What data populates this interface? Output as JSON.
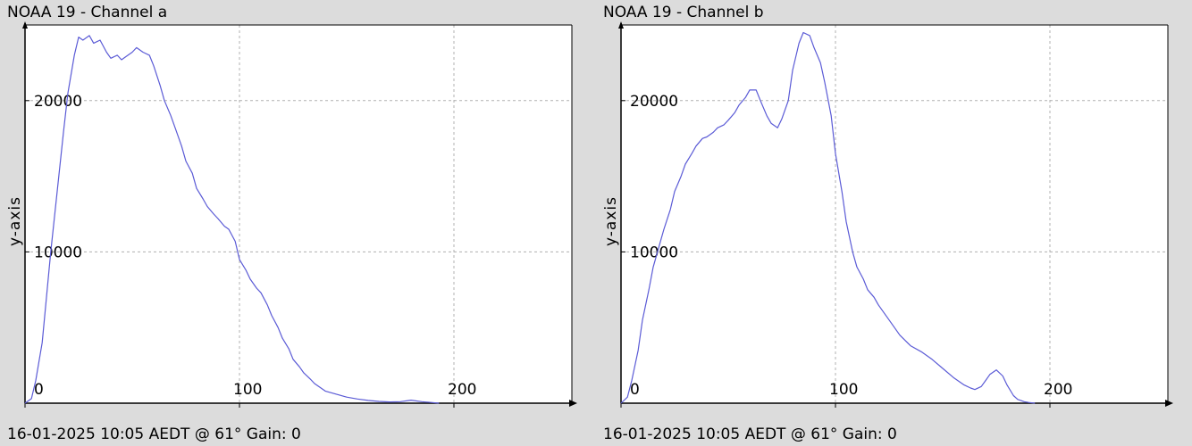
{
  "chart_data": [
    {
      "type": "line",
      "title": "NOAA 19 - Channel a",
      "footer": "16-01-2025 10:05 AEDT @ 61° Gain: 0",
      "xlabel": "",
      "ylabel": "y-axis",
      "xlim": [
        0,
        255
      ],
      "ylim": [
        0,
        25000
      ],
      "x_ticks": [
        0,
        100,
        200
      ],
      "x_tick_labels": [
        "0",
        "100",
        "200"
      ],
      "y_ticks": [
        10000,
        20000
      ],
      "y_tick_labels": [
        "10000",
        "20000"
      ],
      "grid": true,
      "color": "#5b5bd6",
      "series": [
        {
          "x": [
            0,
            3,
            5,
            8,
            10,
            12,
            15,
            18,
            20,
            23,
            25,
            27,
            30,
            32,
            35,
            38,
            40,
            43,
            45,
            48,
            50,
            52,
            55,
            58,
            60,
            63,
            65,
            68,
            70,
            73,
            75,
            78,
            80,
            83,
            85,
            88,
            90,
            93,
            95,
            98,
            100,
            103,
            105,
            108,
            110,
            113,
            115,
            118,
            120,
            123,
            125,
            128,
            130,
            133,
            135,
            138,
            140,
            145,
            150,
            155,
            160,
            165,
            170,
            175,
            180,
            185,
            190,
            193
          ],
          "values": [
            0,
            300,
            1500,
            4000,
            7000,
            10000,
            14000,
            18000,
            20500,
            23000,
            24200,
            24000,
            24300,
            23800,
            24000,
            23200,
            22800,
            23000,
            22700,
            23000,
            23200,
            23500,
            23200,
            23000,
            22300,
            21000,
            20000,
            19000,
            18200,
            17000,
            16000,
            15200,
            14200,
            13500,
            13000,
            12500,
            12200,
            11700,
            11500,
            10700,
            9500,
            8800,
            8200,
            7600,
            7300,
            6500,
            5800,
            5000,
            4300,
            3600,
            2900,
            2400,
            2000,
            1600,
            1300,
            1000,
            800,
            600,
            400,
            280,
            180,
            120,
            80,
            100,
            200,
            100,
            40,
            0
          ]
        }
      ]
    },
    {
      "type": "line",
      "title": "NOAA 19 - Channel b",
      "footer": "16-01-2025 10:05 AEDT @ 61° Gain: 0",
      "xlabel": "",
      "ylabel": "y-axis",
      "xlim": [
        0,
        255
      ],
      "ylim": [
        0,
        25000
      ],
      "x_ticks": [
        0,
        100,
        200
      ],
      "x_tick_labels": [
        "0",
        "100",
        "200"
      ],
      "y_ticks": [
        10000,
        20000
      ],
      "y_tick_labels": [
        "10000",
        "20000"
      ],
      "grid": true,
      "color": "#5b5bd6",
      "series": [
        {
          "x": [
            0,
            3,
            5,
            8,
            10,
            13,
            15,
            18,
            20,
            23,
            25,
            28,
            30,
            33,
            35,
            38,
            40,
            43,
            45,
            48,
            50,
            53,
            55,
            58,
            60,
            63,
            65,
            68,
            70,
            73,
            75,
            78,
            80,
            83,
            85,
            88,
            90,
            93,
            95,
            98,
            100,
            103,
            105,
            108,
            110,
            113,
            115,
            118,
            120,
            125,
            130,
            135,
            140,
            145,
            150,
            155,
            160,
            163,
            165,
            168,
            170,
            172,
            175,
            178,
            180,
            183,
            185,
            188,
            190,
            193
          ],
          "values": [
            0,
            400,
            1500,
            3500,
            5500,
            7500,
            9000,
            10500,
            11500,
            12800,
            14000,
            15000,
            15800,
            16500,
            17000,
            17500,
            17600,
            17900,
            18200,
            18400,
            18700,
            19200,
            19700,
            20200,
            20700,
            20700,
            20000,
            19000,
            18500,
            18200,
            18800,
            20000,
            22000,
            23800,
            24500,
            24300,
            23500,
            22500,
            21200,
            19000,
            16500,
            14000,
            12000,
            10000,
            9000,
            8200,
            7500,
            7000,
            6500,
            5500,
            4500,
            3800,
            3400,
            2900,
            2300,
            1700,
            1200,
            1000,
            900,
            1100,
            1500,
            1900,
            2200,
            1800,
            1200,
            500,
            250,
            100,
            50,
            0
          ]
        }
      ]
    }
  ]
}
